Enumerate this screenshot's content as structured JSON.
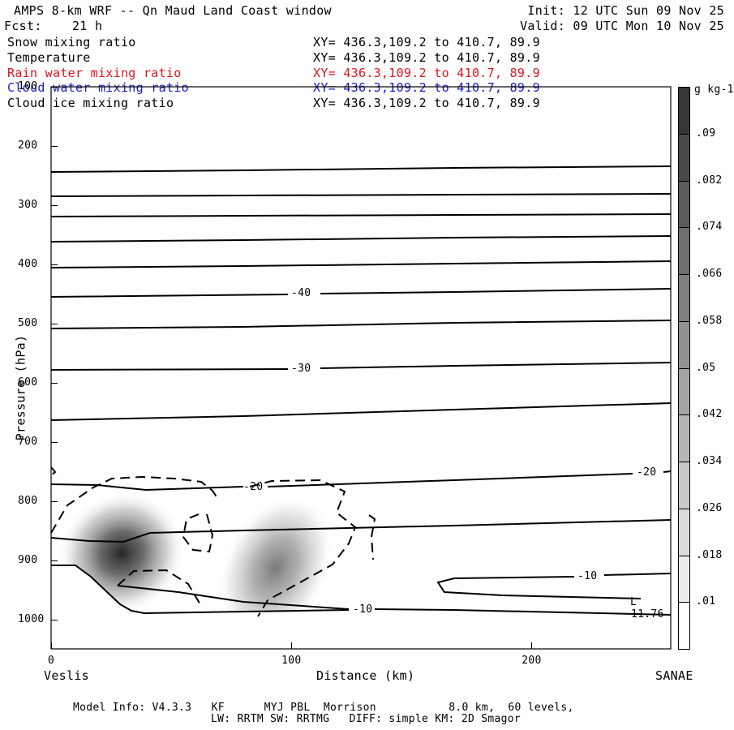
{
  "header": {
    "title": "AMPS 8-km WRF -- Qn Maud Land Coast window",
    "fcst": "Fcst:    21 h",
    "init": "Init: 12 UTC Sun 09 Nov 25",
    "valid": "Valid: 09 UTC Mon 10 Nov 25"
  },
  "fields": [
    {
      "name": "Snow mixing ratio",
      "xy": "XY= 436.3,109.2 to 410.7, 89.9",
      "color": "#000000"
    },
    {
      "name": "Temperature",
      "xy": "XY= 436.3,109.2 to 410.7, 89.9",
      "color": "#000000"
    },
    {
      "name": "Rain water mixing ratio",
      "xy": "XY= 436.3,109.2 to 410.7, 89.9",
      "color": "#e0141e"
    },
    {
      "name": "Cloud water mixing ratio",
      "xy": "XY= 436.3,109.2 to 410.7, 89.9",
      "color": "#1a1acc"
    },
    {
      "name": "Cloud ice mixing ratio",
      "xy": "XY= 436.3,109.2 to 410.7, 89.9",
      "color": "#000000"
    }
  ],
  "chart_data": {
    "type": "heatmap",
    "xlabel": "Distance (km)",
    "ylabel": "Pressure (hPa)",
    "xlim": [
      0,
      258
    ],
    "ylim": [
      1050,
      100
    ],
    "x_ticks": [
      0,
      100,
      200
    ],
    "y_ticks": [
      100,
      200,
      300,
      400,
      500,
      600,
      700,
      800,
      900,
      1000
    ],
    "x_end_labels": {
      "left": "Veslis",
      "right": "SANAE"
    },
    "colorbar": {
      "unit": "g kg-1",
      "levels": [
        0.01,
        0.018,
        0.026,
        0.034,
        0.042,
        0.05,
        0.058,
        0.066,
        0.074,
        0.082,
        0.09
      ],
      "labels": [
        ".01",
        ".018",
        ".026",
        ".034",
        ".042",
        ".05",
        ".058",
        ".066",
        ".074",
        ".082",
        ".09"
      ]
    },
    "snow_maxima": [
      {
        "x": 29,
        "p": 890,
        "value": 0.09
      },
      {
        "x": 97,
        "p": 930,
        "value": 0.06
      }
    ],
    "temperature_labels": [
      {
        "text": "-40",
        "x": 104,
        "p": 450
      },
      {
        "text": "-30",
        "x": 104,
        "p": 578
      },
      {
        "text": "-20",
        "x": 85,
        "p": 777
      },
      {
        "text": "-20",
        "x": 248,
        "p": 752
      },
      {
        "text": "-10",
        "x": 224,
        "p": 922
      },
      {
        "text": "-10",
        "x": 130,
        "p": 982
      }
    ],
    "low_marker": {
      "label": "L",
      "value": "11.76",
      "x": 243,
      "p": 975
    }
  },
  "footer": {
    "model_info": "Model Info: V4.3.3   KF      MYJ PBL  Morrison           8.0 km,  60 levels,",
    "physics": "LW: RRTM SW: RRTMG   DIFF: simple KM: 2D Smagor"
  }
}
